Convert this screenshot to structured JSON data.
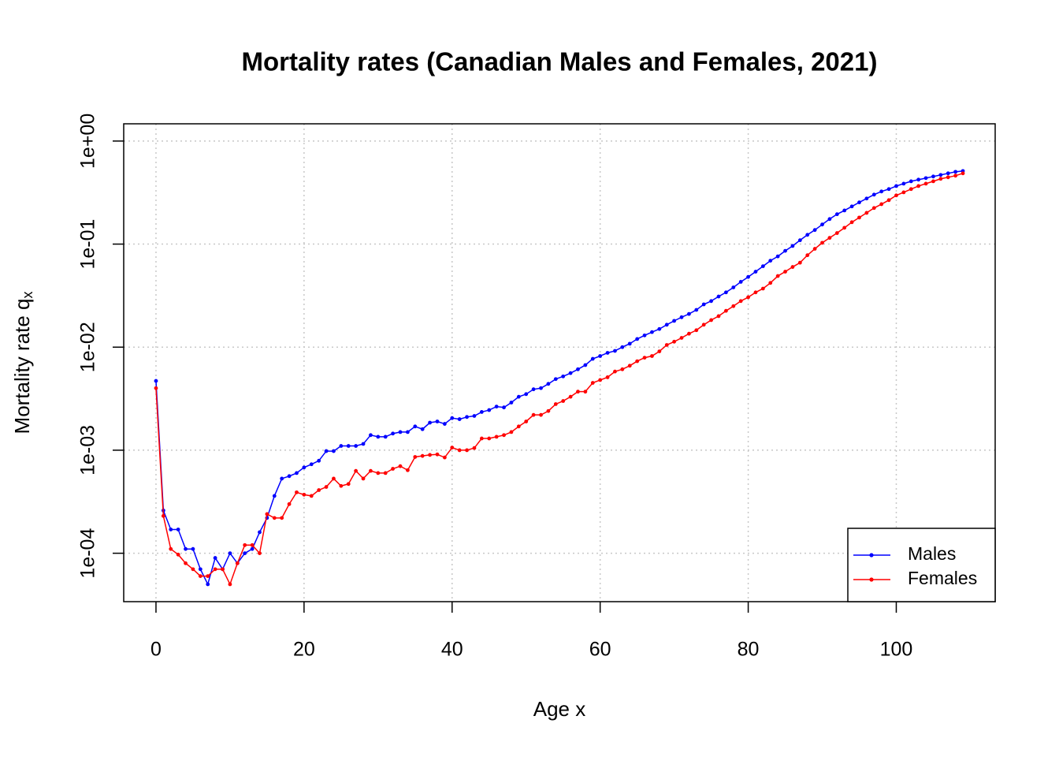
{
  "chart_data": {
    "type": "line",
    "title": "Mortality rates (Canadian Males and Females, 2021)",
    "x_label": "Age x",
    "y_label": "Mortality rate q",
    "y_label_subscript": "x",
    "x": [
      0,
      1,
      2,
      3,
      4,
      5,
      6,
      7,
      8,
      9,
      10,
      11,
      12,
      13,
      14,
      15,
      16,
      17,
      18,
      19,
      20,
      21,
      22,
      23,
      24,
      25,
      26,
      27,
      28,
      29,
      30,
      31,
      32,
      33,
      34,
      35,
      36,
      37,
      38,
      39,
      40,
      41,
      42,
      43,
      44,
      45,
      46,
      47,
      48,
      49,
      50,
      51,
      52,
      53,
      54,
      55,
      56,
      57,
      58,
      59,
      60,
      61,
      62,
      63,
      64,
      65,
      66,
      67,
      68,
      69,
      70,
      71,
      72,
      73,
      74,
      75,
      76,
      77,
      78,
      79,
      80,
      81,
      82,
      83,
      84,
      85,
      86,
      87,
      88,
      89,
      90,
      91,
      92,
      93,
      94,
      95,
      96,
      97,
      98,
      99,
      100,
      101,
      102,
      103,
      104,
      105,
      106,
      107,
      108,
      109
    ],
    "series": [
      {
        "name": "Males",
        "color": "#0000ff",
        "values": [
          0.0047,
          0.00026,
          0.00017,
          0.00017,
          0.00011,
          0.00011,
          7e-05,
          5e-05,
          9e-05,
          7e-05,
          0.0001,
          8e-05,
          0.0001,
          0.00011,
          0.00016,
          0.00022,
          0.00036,
          0.00053,
          0.00056,
          0.0006,
          0.00068,
          0.00073,
          0.00079,
          0.00098,
          0.00098,
          0.0011,
          0.0011,
          0.0011,
          0.00115,
          0.0014,
          0.00135,
          0.00135,
          0.00145,
          0.0015,
          0.0015,
          0.0017,
          0.0016,
          0.00185,
          0.0019,
          0.0018,
          0.00205,
          0.002,
          0.0021,
          0.00215,
          0.00235,
          0.00245,
          0.00265,
          0.0026,
          0.0029,
          0.0033,
          0.0035,
          0.0039,
          0.004,
          0.0044,
          0.0049,
          0.0052,
          0.0056,
          0.0061,
          0.0067,
          0.0077,
          0.0082,
          0.0088,
          0.0092,
          0.01,
          0.0108,
          0.012,
          0.013,
          0.014,
          0.015,
          0.0165,
          0.018,
          0.0195,
          0.021,
          0.023,
          0.026,
          0.028,
          0.031,
          0.034,
          0.038,
          0.043,
          0.048,
          0.054,
          0.061,
          0.069,
          0.076,
          0.086,
          0.096,
          0.109,
          0.123,
          0.137,
          0.155,
          0.175,
          0.195,
          0.212,
          0.232,
          0.254,
          0.277,
          0.302,
          0.324,
          0.342,
          0.366,
          0.386,
          0.407,
          0.422,
          0.437,
          0.453,
          0.469,
          0.486,
          0.503,
          0.512
        ]
      },
      {
        "name": "Females",
        "color": "#ff0000",
        "values": [
          0.004,
          0.00023,
          0.00011,
          9.7e-05,
          8e-05,
          7e-05,
          6e-05,
          6e-05,
          7e-05,
          7e-05,
          5e-05,
          8e-05,
          0.00012,
          0.00012,
          0.0001,
          0.00024,
          0.00022,
          0.00022,
          0.0003,
          0.00039,
          0.00037,
          0.00036,
          0.00041,
          0.00044,
          0.00053,
          0.00045,
          0.00047,
          0.00063,
          0.00053,
          0.00063,
          0.0006,
          0.0006,
          0.00066,
          0.0007,
          0.00064,
          0.00086,
          0.00088,
          0.0009,
          0.00091,
          0.00085,
          0.00106,
          0.001,
          0.001,
          0.00105,
          0.0013,
          0.0013,
          0.00135,
          0.0014,
          0.0015,
          0.0017,
          0.0019,
          0.0022,
          0.0022,
          0.0024,
          0.0028,
          0.003,
          0.0033,
          0.0037,
          0.0037,
          0.0045,
          0.0048,
          0.0051,
          0.0058,
          0.0061,
          0.0066,
          0.0073,
          0.0079,
          0.0082,
          0.0091,
          0.0105,
          0.0113,
          0.0123,
          0.0135,
          0.0146,
          0.0165,
          0.0183,
          0.02,
          0.0225,
          0.025,
          0.028,
          0.0305,
          0.034,
          0.037,
          0.042,
          0.049,
          0.054,
          0.06,
          0.066,
          0.078,
          0.09,
          0.103,
          0.115,
          0.128,
          0.144,
          0.163,
          0.181,
          0.201,
          0.224,
          0.244,
          0.267,
          0.297,
          0.318,
          0.342,
          0.366,
          0.386,
          0.407,
          0.43,
          0.445,
          0.461,
          0.486
        ]
      }
    ],
    "xlim": [
      -4.36,
      113.36
    ],
    "xticks": [
      0,
      20,
      40,
      60,
      80,
      100
    ],
    "ylim": [
      3.39e-05,
      1.47
    ],
    "log_y": true,
    "yticks": [
      {
        "value": 0.0001,
        "label": "1e-04"
      },
      {
        "value": 0.001,
        "label": "1e-03"
      },
      {
        "value": 0.01,
        "label": "1e-02"
      },
      {
        "value": 0.1,
        "label": "1e-01"
      },
      {
        "value": 1,
        "label": "1e+00"
      }
    ],
    "grid": true,
    "legend": "bottomright"
  }
}
